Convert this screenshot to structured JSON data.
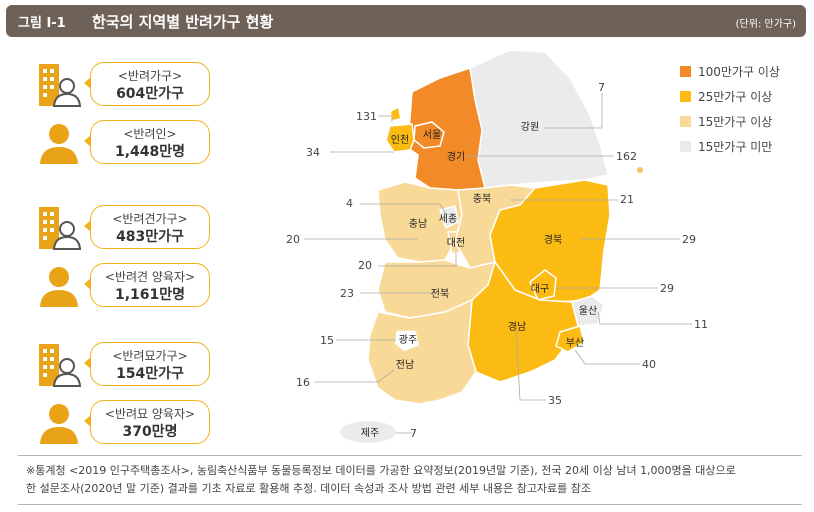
{
  "header": {
    "figure_number": "그림 Ⅰ-1",
    "title": "한국의 지역별  반려가구 현황",
    "unit": "(단위: 만가구)"
  },
  "stats": [
    {
      "label": "<반려가구>",
      "value": "604만가구",
      "icon": "apartment-person-icon"
    },
    {
      "label": "<반려인>",
      "value": "1,448만명",
      "icon": "person-icon"
    },
    {
      "label": "<반려견가구>",
      "value": "483만가구",
      "icon": "apartment-person-icon"
    },
    {
      "label": "<반려견 양육자>",
      "value": "1,161만명",
      "icon": "person-icon"
    },
    {
      "label": "<반려묘가구>",
      "value": "154만가구",
      "icon": "apartment-person-icon"
    },
    {
      "label": "<반려묘 양육자>",
      "value": "370만명",
      "icon": "person-icon"
    }
  ],
  "legend": [
    {
      "label": "100만가구 이상",
      "color": "#f28a28"
    },
    {
      "label": "25만가구 이상",
      "color": "#fbbb12"
    },
    {
      "label": "15만가구 이상",
      "color": "#f8d998"
    },
    {
      "label": "15만가구 미만",
      "color": "#ebebeb"
    }
  ],
  "chart_data": {
    "type": "choropleth-map",
    "regions": [
      {
        "name": "서울",
        "value": null,
        "category": "100만가구 이상"
      },
      {
        "name": "인천",
        "value": 34,
        "category": "25만가구 이상"
      },
      {
        "name": "경기",
        "value": 131,
        "category": "100만가구 이상"
      },
      {
        "name": "강원",
        "value": 7,
        "category": "15만가구 미만"
      },
      {
        "name": "충북",
        "value": 21,
        "category": "15만가구 이상"
      },
      {
        "name": "충남",
        "value": 20,
        "category": "15만가구 이상"
      },
      {
        "name": "세종",
        "value": 4,
        "category": "15만가구 미만"
      },
      {
        "name": "대전",
        "value": 20,
        "category": "15만가구 이상"
      },
      {
        "name": "경북",
        "value": 29,
        "category": "25만가구 이상"
      },
      {
        "name": "대구",
        "value": 29,
        "category": "25만가구 이상"
      },
      {
        "name": "울산",
        "value": 11,
        "category": "15만가구 미만"
      },
      {
        "name": "전북",
        "value": 23,
        "category": "15만가구 이상"
      },
      {
        "name": "광주",
        "value": 15,
        "category": "15만가구 이상"
      },
      {
        "name": "전남",
        "value": 16,
        "category": "15만가구 이상"
      },
      {
        "name": "경남",
        "value": 35,
        "category": "25만가구 이상"
      },
      {
        "name": "부산",
        "value": 40,
        "category": "25만가구 이상"
      },
      {
        "name": "제주",
        "value": 7,
        "category": "15만가구 미만"
      }
    ],
    "annotations": [
      {
        "value": "131",
        "region": "경기"
      },
      {
        "value": "34",
        "region": "인천"
      },
      {
        "value": "7",
        "region": "강원"
      },
      {
        "value": "162",
        "region": "서울"
      },
      {
        "value": "4",
        "region": "세종"
      },
      {
        "value": "21",
        "region": "충북"
      },
      {
        "value": "20",
        "region": "충남"
      },
      {
        "value": "29",
        "region": "경북"
      },
      {
        "value": "20",
        "region": "대전"
      },
      {
        "value": "23",
        "region": "전북"
      },
      {
        "value": "29",
        "region": "대구"
      },
      {
        "value": "11",
        "region": "울산"
      },
      {
        "value": "15",
        "region": "광주"
      },
      {
        "value": "40",
        "region": "부산"
      },
      {
        "value": "16",
        "region": "전남"
      },
      {
        "value": "35",
        "region": "경남"
      },
      {
        "value": "7",
        "region": "제주"
      }
    ]
  },
  "footnote": {
    "line1": "※통계청 <2019 인구주택총조사>, 농림축산식품부 동물등록정보 데이터를 가공한 요약정보(2019년말 기준), 전국 20세 이상 남녀 1,000명을 대상으로",
    "line2": "한 설문조사(2020년 말 기준) 결과를 기초 자료로 활용해 추정. 데이터 속성과 조사 방법 관련 세부 내용은 참고자료를 참조"
  }
}
